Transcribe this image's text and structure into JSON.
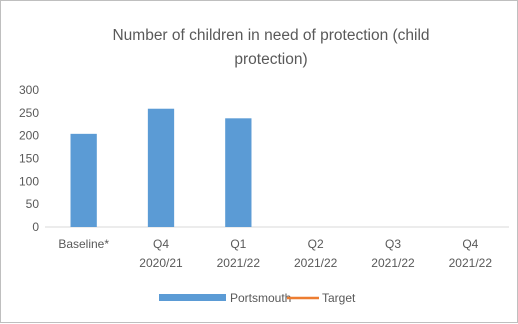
{
  "chart_data": {
    "type": "bar",
    "title_lines": [
      "Number of children in need of protection (child",
      "protection)"
    ],
    "categories": [
      [
        "Baseline*"
      ],
      [
        "Q4",
        "2020/21"
      ],
      [
        "Q1",
        "2021/22"
      ],
      [
        "Q2",
        "2021/22"
      ],
      [
        "Q3",
        "2021/22"
      ],
      [
        "Q4",
        "2021/22"
      ]
    ],
    "series": [
      {
        "name": "Portsmouth",
        "type": "bar",
        "color": "#5b9bd5",
        "values": [
          204,
          259,
          238,
          null,
          null,
          null
        ]
      },
      {
        "name": "Target",
        "type": "line",
        "color": "#ed7d31",
        "values": [
          null,
          null,
          null,
          null,
          null,
          null
        ]
      }
    ],
    "ylim": [
      0,
      300
    ],
    "yticks": [
      "0",
      "50",
      "100",
      "150",
      "200",
      "250",
      "300"
    ],
    "grid": false,
    "legend_position": "bottom"
  }
}
